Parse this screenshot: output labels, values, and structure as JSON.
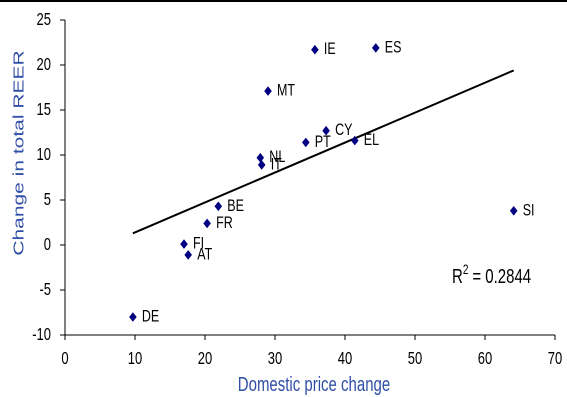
{
  "chart_data": {
    "type": "scatter",
    "xlabel": "Domestic price change",
    "ylabel": "Change in total REER",
    "xlim": [
      0,
      70
    ],
    "ylim": [
      -10,
      25
    ],
    "xticks": [
      0,
      10,
      20,
      30,
      40,
      50,
      60,
      70
    ],
    "yticks": [
      25,
      20,
      15,
      10,
      5,
      0,
      -5,
      -10
    ],
    "grid": false,
    "points": [
      {
        "label": "DE",
        "x": 9.7,
        "y": -8.0
      },
      {
        "label": "FI",
        "x": 17.0,
        "y": 0.1
      },
      {
        "label": "AT",
        "x": 17.6,
        "y": -1.1
      },
      {
        "label": "FR",
        "x": 20.3,
        "y": 2.4
      },
      {
        "label": "BE",
        "x": 21.9,
        "y": 4.3
      },
      {
        "label": "NL",
        "x": 27.9,
        "y": 9.7
      },
      {
        "label": "IT",
        "x": 28.1,
        "y": 8.9
      },
      {
        "label": "MT",
        "x": 29.0,
        "y": 17.1
      },
      {
        "label": "PT",
        "x": 34.4,
        "y": 11.4
      },
      {
        "label": "IE",
        "x": 35.7,
        "y": 21.7
      },
      {
        "label": "CY",
        "x": 37.3,
        "y": 12.7
      },
      {
        "label": "EL",
        "x": 41.4,
        "y": 11.6
      },
      {
        "label": "ES",
        "x": 44.4,
        "y": 21.9
      },
      {
        "label": "SI",
        "x": 64.1,
        "y": 3.8
      }
    ],
    "trendline": {
      "x": [
        9.7,
        64.1
      ],
      "y": [
        1.3,
        19.4
      ],
      "r2": {
        "symbol": "R",
        "exponent": "2",
        "value": "= 0.2844"
      }
    },
    "colors": {
      "marker": "#000080",
      "trendline": "#000000",
      "axis": "#000000",
      "axis_title": "#2f4fa6"
    }
  }
}
